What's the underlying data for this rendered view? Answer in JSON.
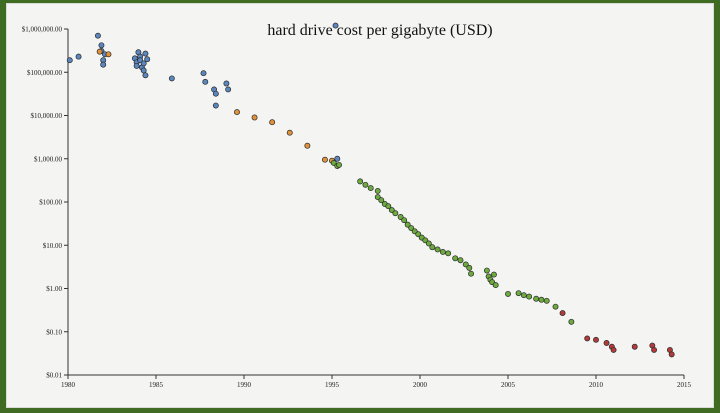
{
  "chart_data": {
    "type": "scatter",
    "title": "hard drive cost per gigabyte (USD)",
    "xlabel": "",
    "ylabel": "",
    "xlim": [
      1980,
      2015
    ],
    "ylim": [
      0.01,
      1000000
    ],
    "y_scale": "log",
    "grid": false,
    "x_ticks": [
      1980,
      1985,
      1990,
      1995,
      2000,
      2005,
      2010,
      2015
    ],
    "x_tick_labels": [
      "1980",
      "1985",
      "1990",
      "1995",
      "2000",
      "2005",
      "2010",
      "2015"
    ],
    "y_ticks": [
      1000000,
      100000,
      10000,
      1000,
      100,
      10,
      1,
      0.1,
      0.01
    ],
    "y_tick_labels": [
      "$1,000,000.00",
      "$100,000.00",
      "$10,000.00",
      "$1,000.00",
      "$100.00",
      "$10.00",
      "$1.00",
      "$0.10",
      "$0.01"
    ],
    "colors": {
      "blue": "#5b86bf",
      "orange": "#e0923b",
      "green": "#6dab3f",
      "red": "#b23a3a",
      "outline": "#2b2b2b"
    },
    "series": [
      {
        "color": "#5b86bf",
        "points": [
          [
            1980.1,
            190000
          ],
          [
            1980.6,
            230000
          ],
          [
            1981.7,
            700000
          ],
          [
            1981.9,
            420000
          ],
          [
            1981.9,
            310000
          ],
          [
            1982.0,
            190000
          ],
          [
            1982.0,
            150000
          ],
          [
            1982.1,
            260000
          ],
          [
            1983.8,
            210000
          ],
          [
            1983.9,
            170000
          ],
          [
            1983.9,
            140000
          ],
          [
            1984.0,
            290000
          ],
          [
            1984.1,
            230000
          ],
          [
            1984.1,
            190000
          ],
          [
            1984.2,
            130000
          ],
          [
            1984.3,
            160000
          ],
          [
            1984.3,
            110000
          ],
          [
            1984.4,
            85000
          ],
          [
            1984.4,
            270000
          ],
          [
            1984.5,
            200000
          ],
          [
            1985.9,
            72000
          ],
          [
            1987.7,
            95000
          ],
          [
            1987.8,
            60000
          ],
          [
            1988.3,
            40000
          ],
          [
            1988.4,
            32000
          ],
          [
            1988.4,
            17000
          ],
          [
            1989.0,
            55000
          ],
          [
            1989.1,
            40000
          ],
          [
            1995.2,
            1200000
          ],
          [
            1995.3,
            1000
          ]
        ]
      },
      {
        "color": "#e0923b",
        "points": [
          [
            1981.8,
            300000
          ],
          [
            1982.3,
            260000
          ],
          [
            1989.6,
            12000
          ],
          [
            1990.6,
            9000
          ],
          [
            1991.6,
            7000
          ],
          [
            1992.6,
            4000
          ],
          [
            1993.6,
            2000
          ],
          [
            1994.6,
            950
          ],
          [
            1995.0,
            900
          ]
        ]
      },
      {
        "color": "#6dab3f",
        "points": [
          [
            1995.1,
            800
          ],
          [
            1995.3,
            680
          ],
          [
            1995.4,
            720
          ],
          [
            1996.6,
            300
          ],
          [
            1996.9,
            250
          ],
          [
            1997.2,
            210
          ],
          [
            1997.6,
            180
          ],
          [
            1997.6,
            130
          ],
          [
            1997.8,
            110
          ],
          [
            1998.0,
            90
          ],
          [
            1998.2,
            80
          ],
          [
            1998.4,
            65
          ],
          [
            1998.6,
            55
          ],
          [
            1998.9,
            45
          ],
          [
            1999.1,
            38
          ],
          [
            1999.3,
            30
          ],
          [
            1999.5,
            25
          ],
          [
            1999.7,
            21
          ],
          [
            1999.9,
            18
          ],
          [
            2000.1,
            15
          ],
          [
            2000.3,
            13
          ],
          [
            2000.5,
            11
          ],
          [
            2000.7,
            9
          ],
          [
            2001.0,
            8
          ],
          [
            2001.3,
            7
          ],
          [
            2001.6,
            6.5
          ],
          [
            2002.0,
            5
          ],
          [
            2002.3,
            4.5
          ],
          [
            2002.6,
            3.6
          ],
          [
            2002.8,
            3
          ],
          [
            2002.9,
            2.2
          ],
          [
            2003.8,
            2.6
          ],
          [
            2003.9,
            1.9
          ],
          [
            2004.0,
            1.6
          ],
          [
            2004.1,
            1.4
          ],
          [
            2004.2,
            2.1
          ],
          [
            2004.3,
            1.2
          ],
          [
            2005.0,
            0.75
          ],
          [
            2005.6,
            0.78
          ],
          [
            2005.9,
            0.7
          ],
          [
            2006.2,
            0.65
          ],
          [
            2006.6,
            0.58
          ],
          [
            2006.9,
            0.55
          ],
          [
            2007.2,
            0.52
          ],
          [
            2007.7,
            0.38
          ],
          [
            2008.6,
            0.17
          ]
        ]
      },
      {
        "color": "#b23a3a",
        "points": [
          [
            2008.1,
            0.27
          ],
          [
            2009.5,
            0.07
          ],
          [
            2010.0,
            0.065
          ],
          [
            2010.6,
            0.055
          ],
          [
            2010.9,
            0.045
          ],
          [
            2011.0,
            0.038
          ],
          [
            2012.2,
            0.045
          ],
          [
            2013.2,
            0.048
          ],
          [
            2013.3,
            0.038
          ],
          [
            2014.2,
            0.038
          ],
          [
            2014.3,
            0.03
          ]
        ]
      }
    ]
  }
}
